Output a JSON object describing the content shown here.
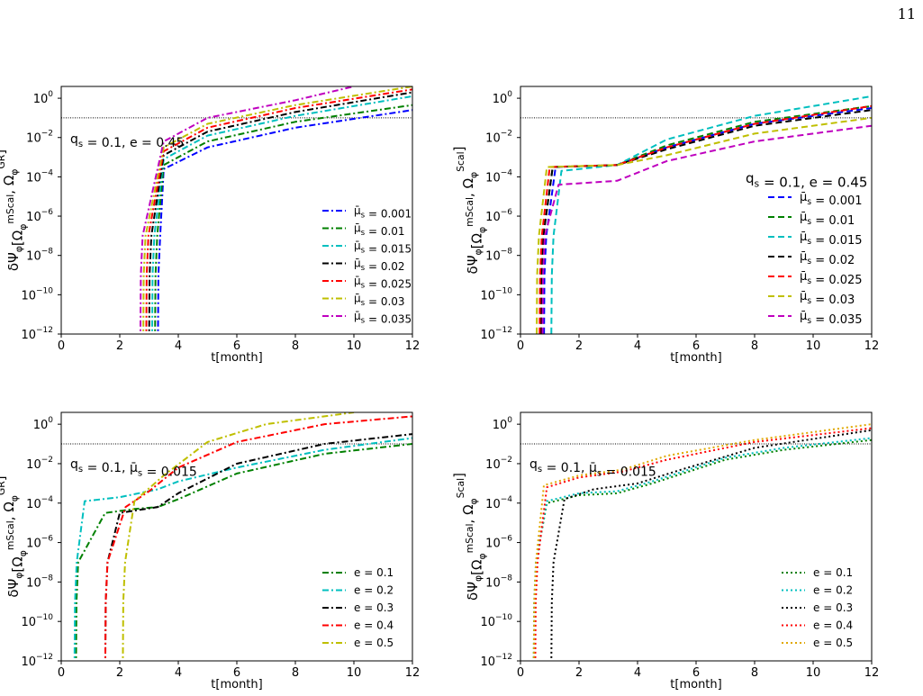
{
  "page": {
    "number": "11"
  },
  "chart_data": [
    {
      "type": "line",
      "ylabel": "δΨ_φ[Ω_φ^mScal, Ω_φ^GR]",
      "xlabel": "t[month]",
      "xlim": [
        0,
        12
      ],
      "ylim_log10": [
        -12,
        0.6
      ],
      "x_ticks": [
        "0",
        "2",
        "4",
        "6",
        "8",
        "10",
        "12"
      ],
      "y_ticks": [
        {
          "base": "10",
          "exp": "0"
        },
        {
          "base": "10",
          "exp": "−2"
        },
        {
          "base": "10",
          "exp": "−4"
        },
        {
          "base": "10",
          "exp": "−6"
        },
        {
          "base": "10",
          "exp": "−8"
        },
        {
          "base": "10",
          "exp": "−10"
        },
        {
          "base": "10",
          "exp": "−12"
        }
      ],
      "reference_line_y": 0.1,
      "annotation": "q_s = 0.1, e = 0.45",
      "legend": "lower-right",
      "series": [
        {
          "name": "μ̄_s = 0.001",
          "color": "#0000ff",
          "style": "dashdot",
          "rise_x": 3.3,
          "values_log10": [
            [
              3.5,
              -3.6
            ],
            [
              5,
              -2.5
            ],
            [
              8,
              -1.5
            ],
            [
              12,
              -0.6
            ]
          ]
        },
        {
          "name": "μ̄_s = 0.01",
          "color": "#008000",
          "style": "dashdot",
          "rise_x": 3.2,
          "values_log10": [
            [
              3.5,
              -3.4
            ],
            [
              5,
              -2.2
            ],
            [
              8,
              -1.2
            ],
            [
              12,
              -0.35
            ]
          ]
        },
        {
          "name": "μ̄_s = 0.015",
          "color": "#00bfbf",
          "style": "dashdot",
          "rise_x": 3.1,
          "values_log10": [
            [
              3.5,
              -3.1
            ],
            [
              5,
              -1.9
            ],
            [
              8,
              -0.9
            ],
            [
              12,
              0.1
            ]
          ]
        },
        {
          "name": "μ̄_s = 0.02",
          "color": "#000000",
          "style": "dashdot",
          "rise_x": 3.0,
          "values_log10": [
            [
              3.5,
              -2.9
            ],
            [
              5,
              -1.7
            ],
            [
              8,
              -0.7
            ],
            [
              12,
              0.3
            ]
          ]
        },
        {
          "name": "μ̄_s = 0.025",
          "color": "#ff0000",
          "style": "dashdot",
          "rise_x": 2.9,
          "values_log10": [
            [
              3.5,
              -2.7
            ],
            [
              5,
              -1.5
            ],
            [
              8,
              -0.5
            ],
            [
              12,
              0.45
            ]
          ]
        },
        {
          "name": "μ̄_s = 0.03",
          "color": "#bfbf00",
          "style": "dashdot",
          "rise_x": 2.8,
          "values_log10": [
            [
              3.5,
              -2.5
            ],
            [
              5,
              -1.3
            ],
            [
              8,
              -0.35
            ],
            [
              12,
              0.6
            ]
          ]
        },
        {
          "name": "μ̄_s = 0.035",
          "color": "#bf00bf",
          "style": "dashdot",
          "rise_x": 2.7,
          "values_log10": [
            [
              3.5,
              -2.2
            ],
            [
              5,
              -1.0
            ],
            [
              8,
              -0.1
            ],
            [
              10,
              0.6
            ]
          ]
        }
      ]
    },
    {
      "type": "line",
      "ylabel": "δΨ_φ[Ω_φ^mScal, Ω_φ^Scal]",
      "xlabel": "t[month]",
      "xlim": [
        0,
        12
      ],
      "ylim_log10": [
        -12,
        0.6
      ],
      "x_ticks": [
        "0",
        "2",
        "4",
        "6",
        "8",
        "10",
        "12"
      ],
      "y_ticks": [
        {
          "base": "10",
          "exp": "0"
        },
        {
          "base": "10",
          "exp": "−2"
        },
        {
          "base": "10",
          "exp": "−4"
        },
        {
          "base": "10",
          "exp": "−6"
        },
        {
          "base": "10",
          "exp": "−8"
        },
        {
          "base": "10",
          "exp": "−10"
        },
        {
          "base": "10",
          "exp": "−12"
        }
      ],
      "reference_line_y": 0.1,
      "annotation": "q_s = 0.1, e = 0.45",
      "legend": "lower-right",
      "series": [
        {
          "name": "μ̄_s = 0.001",
          "color": "#0000ff",
          "style": "dashed",
          "rise_x": 0.8,
          "values_log10": [
            [
              1.2,
              -3.5
            ],
            [
              3.3,
              -3.4
            ],
            [
              5,
              -2.5
            ],
            [
              8,
              -1.3
            ],
            [
              12,
              -0.5
            ]
          ]
        },
        {
          "name": "μ̄_s = 0.01",
          "color": "#008000",
          "style": "dashed",
          "rise_x": 0.7,
          "values_log10": [
            [
              1.1,
              -3.5
            ],
            [
              3.3,
              -3.4
            ],
            [
              5,
              -2.4
            ],
            [
              8,
              -1.2
            ],
            [
              12,
              -0.4
            ]
          ]
        },
        {
          "name": "μ̄_s = 0.015",
          "color": "#00bfbf",
          "style": "dashed",
          "rise_x": 1.05,
          "values_log10": [
            [
              1.4,
              -3.7
            ],
            [
              3.3,
              -3.4
            ],
            [
              5,
              -2.1
            ],
            [
              8,
              -0.9
            ],
            [
              12,
              0.1
            ]
          ]
        },
        {
          "name": "μ̄_s = 0.02",
          "color": "#000000",
          "style": "dashed",
          "rise_x": 0.7,
          "values_log10": [
            [
              1.1,
              -3.5
            ],
            [
              3.3,
              -3.4
            ],
            [
              5,
              -2.6
            ],
            [
              8,
              -1.4
            ],
            [
              12,
              -0.6
            ]
          ]
        },
        {
          "name": "μ̄_s = 0.025",
          "color": "#ff0000",
          "style": "dashed",
          "rise_x": 0.65,
          "values_log10": [
            [
              1.0,
              -3.5
            ],
            [
              3.3,
              -3.4
            ],
            [
              5,
              -2.5
            ],
            [
              8,
              -1.3
            ],
            [
              12,
              -0.4
            ]
          ]
        },
        {
          "name": "μ̄_s = 0.03",
          "color": "#bfbf00",
          "style": "dashed",
          "rise_x": 0.55,
          "values_log10": [
            [
              0.9,
              -3.5
            ],
            [
              3.3,
              -3.4
            ],
            [
              5,
              -2.9
            ],
            [
              8,
              -1.8
            ],
            [
              12,
              -1.0
            ]
          ]
        },
        {
          "name": "μ̄_s = 0.035",
          "color": "#bf00bf",
          "style": "dashed",
          "rise_x": 0.75,
          "values_log10": [
            [
              1.3,
              -4.4
            ],
            [
              3.3,
              -4.2
            ],
            [
              5,
              -3.2
            ],
            [
              8,
              -2.2
            ],
            [
              12,
              -1.4
            ]
          ]
        }
      ]
    },
    {
      "type": "line",
      "ylabel": "δΨ_φ[Ω_φ^mScal, Ω_φ^GR]",
      "xlabel": "t[month]",
      "xlim": [
        0,
        12
      ],
      "ylim_log10": [
        -12,
        0.6
      ],
      "x_ticks": [
        "0",
        "2",
        "4",
        "6",
        "8",
        "10",
        "12"
      ],
      "y_ticks": [
        {
          "base": "10",
          "exp": "0"
        },
        {
          "base": "10",
          "exp": "−2"
        },
        {
          "base": "10",
          "exp": "−4"
        },
        {
          "base": "10",
          "exp": "−6"
        },
        {
          "base": "10",
          "exp": "−8"
        },
        {
          "base": "10",
          "exp": "−10"
        },
        {
          "base": "10",
          "exp": "−12"
        }
      ],
      "reference_line_y": 0.1,
      "annotation": "q_s = 0.1, μ̄_s = 0.015",
      "legend": "lower-right",
      "series": [
        {
          "name": "e = 0.1",
          "color": "#008000",
          "style": "dashdot",
          "rise_x": 0.5,
          "values_log10": [
            [
              1.5,
              -4.5
            ],
            [
              2.5,
              -4.3
            ],
            [
              3.3,
              -4.2
            ],
            [
              4,
              -3.8
            ],
            [
              6,
              -2.5
            ],
            [
              9,
              -1.5
            ],
            [
              12,
              -1.0
            ]
          ]
        },
        {
          "name": "e = 0.2",
          "color": "#00bfbf",
          "style": "dashdot",
          "rise_x": 0.45,
          "values_log10": [
            [
              0.8,
              -3.9
            ],
            [
              2,
              -3.7
            ],
            [
              3.3,
              -3.3
            ],
            [
              4,
              -2.9
            ],
            [
              6,
              -2.2
            ],
            [
              9,
              -1.3
            ],
            [
              12,
              -0.7
            ]
          ]
        },
        {
          "name": "e = 0.3",
          "color": "#000000",
          "style": "dashdot",
          "rise_x": 1.5,
          "values_log10": [
            [
              2,
              -4.5
            ],
            [
              3.3,
              -4.2
            ],
            [
              4,
              -3.5
            ],
            [
              6,
              -2.0
            ],
            [
              9,
              -1.0
            ],
            [
              12,
              -0.5
            ]
          ]
        },
        {
          "name": "e = 0.4",
          "color": "#ff0000",
          "style": "dashdot",
          "rise_x": 1.5,
          "values_log10": [
            [
              2.2,
              -4.2
            ],
            [
              3,
              -3.4
            ],
            [
              4,
              -2.2
            ],
            [
              6,
              -0.9
            ],
            [
              9,
              0.0
            ],
            [
              12,
              0.4
            ]
          ]
        },
        {
          "name": "e = 0.5",
          "color": "#bfbf00",
          "style": "dashdot",
          "rise_x": 2.1,
          "values_log10": [
            [
              2.5,
              -3.9
            ],
            [
              3.5,
              -2.6
            ],
            [
              5,
              -0.9
            ],
            [
              7,
              0.0
            ],
            [
              10,
              0.6
            ]
          ]
        }
      ]
    },
    {
      "type": "line",
      "ylabel": "δΨ_φ[Ω_φ^mScal, Ω_φ^Scal]",
      "xlabel": "t[month]",
      "xlim": [
        0,
        12
      ],
      "ylim_log10": [
        -12,
        0.6
      ],
      "x_ticks": [
        "0",
        "2",
        "4",
        "6",
        "8",
        "10",
        "12"
      ],
      "y_ticks": [
        {
          "base": "10",
          "exp": "0"
        },
        {
          "base": "10",
          "exp": "−2"
        },
        {
          "base": "10",
          "exp": "−4"
        },
        {
          "base": "10",
          "exp": "−6"
        },
        {
          "base": "10",
          "exp": "−8"
        },
        {
          "base": "10",
          "exp": "−10"
        },
        {
          "base": "10",
          "exp": "−12"
        }
      ],
      "reference_line_y": 0.1,
      "annotation": "q_s = 0.1, μ̄_s = 0.015",
      "legend": "lower-right",
      "series": [
        {
          "name": "e = 0.1",
          "color": "#008000",
          "style": "dotted",
          "rise_x": 0.45,
          "values_log10": [
            [
              0.9,
              -4.0
            ],
            [
              2,
              -3.6
            ],
            [
              3.3,
              -3.5
            ],
            [
              4.5,
              -3.0
            ],
            [
              7,
              -1.8
            ],
            [
              9,
              -1.3
            ],
            [
              12,
              -0.8
            ]
          ]
        },
        {
          "name": "e = 0.2",
          "color": "#00bfbf",
          "style": "dotted",
          "rise_x": 0.45,
          "values_log10": [
            [
              0.9,
              -3.9
            ],
            [
              2,
              -3.5
            ],
            [
              3.3,
              -3.4
            ],
            [
              4.5,
              -2.9
            ],
            [
              7,
              -1.7
            ],
            [
              9,
              -1.2
            ],
            [
              12,
              -0.7
            ]
          ]
        },
        {
          "name": "e = 0.3",
          "color": "#000000",
          "style": "dotted",
          "rise_x": 1.05,
          "values_log10": [
            [
              1.5,
              -3.8
            ],
            [
              2.5,
              -3.3
            ],
            [
              4,
              -3.0
            ],
            [
              5.5,
              -2.3
            ],
            [
              8,
              -1.2
            ],
            [
              12,
              -0.3
            ]
          ]
        },
        {
          "name": "e = 0.4",
          "color": "#ff0000",
          "style": "dotted",
          "rise_x": 0.5,
          "values_log10": [
            [
              0.9,
              -3.2
            ],
            [
              2,
              -2.7
            ],
            [
              3.5,
              -2.4
            ],
            [
              5,
              -1.8
            ],
            [
              8,
              -0.9
            ],
            [
              12,
              -0.2
            ]
          ]
        },
        {
          "name": "e = 0.5",
          "color": "#e0a800",
          "style": "dotted",
          "rise_x": 0.45,
          "values_log10": [
            [
              0.8,
              -3.1
            ],
            [
              2,
              -2.6
            ],
            [
              3.5,
              -2.3
            ],
            [
              5,
              -1.6
            ],
            [
              8,
              -0.8
            ],
            [
              12,
              0.0
            ]
          ]
        }
      ]
    }
  ]
}
